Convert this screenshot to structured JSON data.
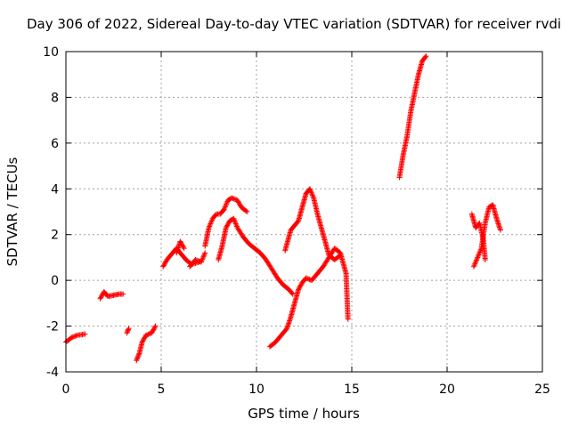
{
  "chart_data": {
    "type": "scatter",
    "title": "Day 306 of 2022, Sidereal Day-to-day VTEC variation (SDTVAR) for receiver rvdi",
    "xlabel": "GPS time / hours",
    "ylabel": "SDTVAR / TECUs",
    "xlim": [
      0,
      25
    ],
    "ylim": [
      -4,
      10
    ],
    "xticks": [
      "0",
      "5",
      "10",
      "15",
      "20",
      "25"
    ],
    "yticks": [
      "-4",
      "-2",
      "0",
      "2",
      "4",
      "6",
      "8",
      "10"
    ],
    "grid": true,
    "marker": "+",
    "color": "#ff0000",
    "series": [
      {
        "name": "s1",
        "x": [
          0,
          0.3,
          0.6,
          1.0
        ],
        "y": [
          -2.7,
          -2.5,
          -2.4,
          -2.35
        ]
      },
      {
        "name": "s2",
        "x": [
          1.8,
          2.0,
          2.2,
          2.5,
          2.8,
          3.0
        ],
        "y": [
          -0.8,
          -0.5,
          -0.7,
          -0.65,
          -0.6,
          -0.6
        ]
      },
      {
        "name": "s3",
        "x": [
          3.2,
          3.3
        ],
        "y": [
          -2.3,
          -2.1
        ]
      },
      {
        "name": "s4",
        "x": [
          3.7,
          3.85,
          4.0,
          4.2,
          4.5,
          4.7
        ],
        "y": [
          -3.5,
          -3.2,
          -2.7,
          -2.4,
          -2.3,
          -2.0
        ]
      },
      {
        "name": "s5",
        "x": [
          5.1,
          5.3,
          5.6,
          5.8,
          6.0,
          6.3,
          6.6,
          7.0
        ],
        "y": [
          0.6,
          0.9,
          1.2,
          1.4,
          1.2,
          0.9,
          0.7,
          0.8
        ]
      },
      {
        "name": "s6",
        "x": [
          5.8,
          6.0,
          6.2
        ],
        "y": [
          1.2,
          1.7,
          1.4
        ]
      },
      {
        "name": "s7",
        "x": [
          6.5,
          6.8,
          7.1,
          7.3
        ],
        "y": [
          0.6,
          0.9,
          0.8,
          1.2
        ]
      },
      {
        "name": "s8",
        "x": [
          7.3,
          7.5,
          7.7,
          7.9,
          8.1,
          8.3,
          8.5,
          8.7,
          9.0,
          9.2,
          9.5
        ],
        "y": [
          1.5,
          2.3,
          2.7,
          2.9,
          2.9,
          3.1,
          3.5,
          3.6,
          3.5,
          3.2,
          3.0
        ]
      },
      {
        "name": "s9",
        "x": [
          8.0,
          8.2,
          8.4,
          8.6,
          8.8,
          9.0,
          9.3,
          9.6,
          9.9,
          10.2,
          10.5,
          10.8,
          11.1,
          11.4,
          11.7,
          11.9
        ],
        "y": [
          0.9,
          1.5,
          2.3,
          2.6,
          2.7,
          2.3,
          1.9,
          1.6,
          1.4,
          1.2,
          0.9,
          0.5,
          0.1,
          -0.2,
          -0.4,
          -0.6
        ]
      },
      {
        "name": "s10",
        "x": [
          10.7,
          11.0,
          11.3,
          11.6,
          11.8,
          12.0,
          12.2,
          12.4,
          12.6,
          12.9,
          13.2,
          13.5,
          13.8,
          14.1,
          14.4,
          14.7,
          14.8
        ],
        "y": [
          -2.9,
          -2.7,
          -2.4,
          -2.1,
          -1.6,
          -1.0,
          -0.4,
          -0.1,
          0.1,
          0.0,
          0.3,
          0.6,
          1.0,
          1.4,
          1.2,
          0.3,
          -1.7
        ]
      },
      {
        "name": "s11",
        "x": [
          11.5,
          11.8,
          12.0,
          12.2,
          12.4,
          12.6,
          12.8,
          13.0,
          13.2,
          13.5,
          13.8,
          14.1,
          14.4
        ],
        "y": [
          1.3,
          2.2,
          2.4,
          2.6,
          3.2,
          3.8,
          4.0,
          3.6,
          2.9,
          2.0,
          1.1,
          0.9,
          1.1
        ]
      },
      {
        "name": "s12",
        "x": [
          17.5,
          17.7,
          17.9,
          18.1,
          18.3,
          18.5,
          18.7,
          18.9
        ],
        "y": [
          4.5,
          5.5,
          6.3,
          7.4,
          8.2,
          9.0,
          9.6,
          9.8
        ]
      },
      {
        "name": "s13",
        "x": [
          21.3,
          21.5,
          21.7,
          21.9,
          22.0
        ],
        "y": [
          2.9,
          2.3,
          2.5,
          1.8,
          0.9
        ]
      },
      {
        "name": "s14",
        "x": [
          21.4,
          21.6,
          21.8,
          22.0,
          22.2,
          22.4,
          22.6,
          22.8
        ],
        "y": [
          0.6,
          1.0,
          1.4,
          2.5,
          3.2,
          3.3,
          2.7,
          2.2
        ]
      }
    ]
  }
}
